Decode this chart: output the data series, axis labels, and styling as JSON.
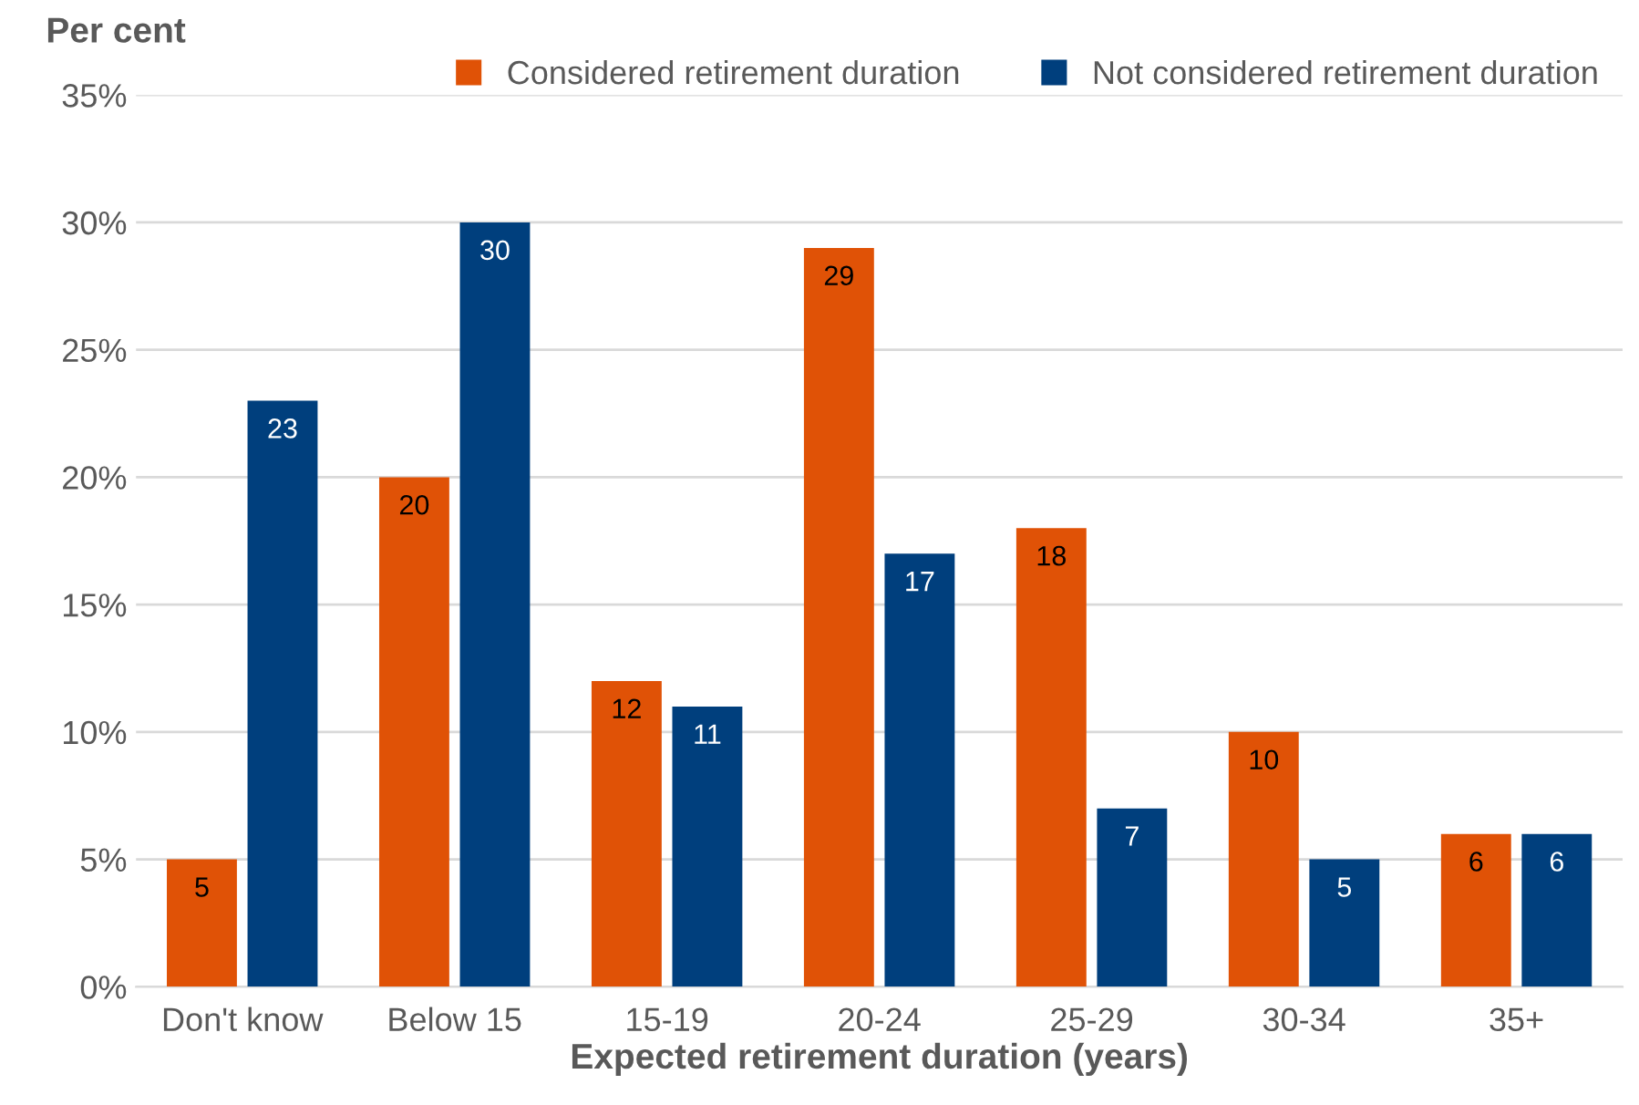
{
  "chart_data": {
    "type": "bar",
    "ylabel": "Per cent",
    "xlabel": "Expected retirement duration (years)",
    "categories": [
      "Don't know",
      "Below 15",
      "15-19",
      "20-24",
      "25-29",
      "30-34",
      "35+"
    ],
    "series": [
      {
        "name": "Considered retirement duration",
        "color": "#e05206",
        "values": [
          5,
          20,
          12,
          29,
          18,
          10,
          6
        ]
      },
      {
        "name": "Not considered retirement duration",
        "color": "#003f7d",
        "values": [
          23,
          30,
          11,
          17,
          7,
          5,
          6
        ]
      }
    ],
    "ylim": [
      0,
      35
    ],
    "yticks": [
      {
        "value": 0,
        "label": "0%"
      },
      {
        "value": 5,
        "label": "5%"
      },
      {
        "value": 10,
        "label": "10%"
      },
      {
        "value": 15,
        "label": "15%"
      },
      {
        "value": 20,
        "label": "20%"
      },
      {
        "value": 25,
        "label": "25%"
      },
      {
        "value": 30,
        "label": "30%"
      },
      {
        "value": 35,
        "label": "35%"
      }
    ],
    "grid": "y",
    "legend": "top",
    "data_labels": true
  }
}
